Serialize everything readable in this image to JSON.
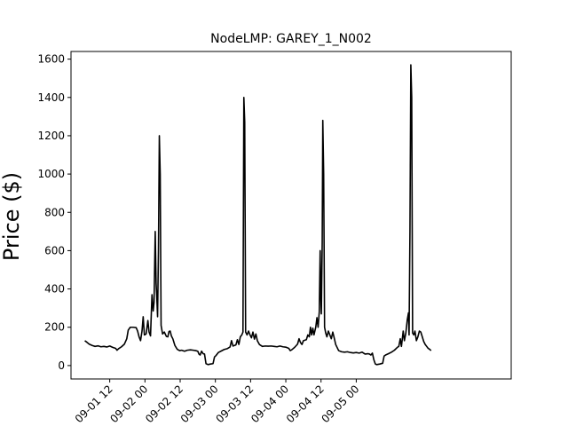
{
  "chart_data": {
    "type": "line",
    "title": "NodeLMP: GAREY_1_N002",
    "xlabel": "",
    "ylabel": "Price ($)",
    "x_unit": "hours since 09-01 00",
    "xlim": [
      -1.2,
      148.8
    ],
    "ylim": [
      -70,
      1640
    ],
    "yticks": [
      0,
      200,
      400,
      600,
      800,
      1000,
      1200,
      1400,
      1600
    ],
    "xticks": [
      {
        "x": 12,
        "label": "09-01 12"
      },
      {
        "x": 24,
        "label": "09-02 00"
      },
      {
        "x": 36,
        "label": "09-02 12"
      },
      {
        "x": 48,
        "label": "09-03 00"
      },
      {
        "x": 60,
        "label": "09-03 12"
      },
      {
        "x": 72,
        "label": "09-04 00"
      },
      {
        "x": 84,
        "label": "09-04 12"
      },
      {
        "x": 96,
        "label": "09-05 00"
      }
    ],
    "grid": false,
    "line_color": "#000000",
    "series": [
      {
        "name": "",
        "points": [
          [
            3.5,
            130
          ],
          [
            4.2,
            122
          ],
          [
            5,
            112
          ],
          [
            6,
            105
          ],
          [
            7,
            100
          ],
          [
            8,
            103
          ],
          [
            9,
            98
          ],
          [
            10,
            100
          ],
          [
            11,
            97
          ],
          [
            12,
            102
          ],
          [
            13,
            95
          ],
          [
            14,
            90
          ],
          [
            14.5,
            80
          ],
          [
            15,
            88
          ],
          [
            16,
            98
          ],
          [
            17,
            112
          ],
          [
            17.8,
            140
          ],
          [
            18.3,
            185
          ],
          [
            19,
            200
          ],
          [
            20,
            200
          ],
          [
            21,
            198
          ],
          [
            21.5,
            180
          ],
          [
            22,
            150
          ],
          [
            22.5,
            130
          ],
          [
            23,
            180
          ],
          [
            23.4,
            255
          ],
          [
            23.8,
            160
          ],
          [
            24.4,
            165
          ],
          [
            25,
            235
          ],
          [
            25.4,
            175
          ],
          [
            25.9,
            155
          ],
          [
            26.4,
            370
          ],
          [
            26.8,
            285
          ],
          [
            27.1,
            330
          ],
          [
            27.5,
            700
          ],
          [
            27.8,
            430
          ],
          [
            28,
            370
          ],
          [
            28.3,
            255
          ],
          [
            28.6,
            600
          ],
          [
            28.9,
            1200
          ],
          [
            29.2,
            1000
          ],
          [
            29.5,
            210
          ],
          [
            30,
            165
          ],
          [
            30.6,
            175
          ],
          [
            31.3,
            152
          ],
          [
            31.8,
            150
          ],
          [
            32.2,
            178
          ],
          [
            32.6,
            180
          ],
          [
            33,
            155
          ],
          [
            33.5,
            140
          ],
          [
            34.2,
            105
          ],
          [
            35,
            85
          ],
          [
            35.8,
            78
          ],
          [
            36.5,
            80
          ],
          [
            37.5,
            75
          ],
          [
            38.4,
            80
          ],
          [
            39.5,
            82
          ],
          [
            40.5,
            80
          ],
          [
            41.3,
            78
          ],
          [
            42,
            75
          ],
          [
            42.4,
            60
          ],
          [
            42.8,
            55
          ],
          [
            43.3,
            75
          ],
          [
            43.8,
            62
          ],
          [
            44.3,
            60
          ],
          [
            44.8,
            10
          ],
          [
            45.5,
            5
          ],
          [
            46.3,
            8
          ],
          [
            47.2,
            10
          ],
          [
            47.7,
            45
          ],
          [
            48.2,
            52
          ],
          [
            49,
            68
          ],
          [
            50,
            76
          ],
          [
            51,
            84
          ],
          [
            52,
            88
          ],
          [
            53,
            97
          ],
          [
            53.5,
            130
          ],
          [
            54,
            102
          ],
          [
            55,
            108
          ],
          [
            55.5,
            135
          ],
          [
            56,
            110
          ],
          [
            56.5,
            150
          ],
          [
            57,
            160
          ],
          [
            57.4,
            175
          ],
          [
            57.7,
            1400
          ],
          [
            58,
            1270
          ],
          [
            58.3,
            175
          ],
          [
            58.8,
            160
          ],
          [
            59.3,
            180
          ],
          [
            59.8,
            160
          ],
          [
            60.3,
            145
          ],
          [
            60.8,
            175
          ],
          [
            61.3,
            138
          ],
          [
            61.8,
            165
          ],
          [
            62.3,
            130
          ],
          [
            63,
            110
          ],
          [
            64,
            100
          ],
          [
            65,
            102
          ],
          [
            66,
            101
          ],
          [
            67,
            102
          ],
          [
            68,
            100
          ],
          [
            69,
            98
          ],
          [
            70,
            102
          ],
          [
            71,
            98
          ],
          [
            72,
            96
          ],
          [
            73,
            90
          ],
          [
            73.5,
            78
          ],
          [
            74,
            82
          ],
          [
            75,
            95
          ],
          [
            76,
            112
          ],
          [
            76.5,
            140
          ],
          [
            77,
            120
          ],
          [
            77.5,
            110
          ],
          [
            78,
            130
          ],
          [
            79,
            135
          ],
          [
            79.5,
            160
          ],
          [
            80,
            150
          ],
          [
            80.4,
            200
          ],
          [
            80.8,
            160
          ],
          [
            81.2,
            195
          ],
          [
            81.6,
            160
          ],
          [
            82.2,
            200
          ],
          [
            82.6,
            250
          ],
          [
            83,
            200
          ],
          [
            83.4,
            280
          ],
          [
            83.7,
            600
          ],
          [
            83.9,
            370
          ],
          [
            84.1,
            270
          ],
          [
            84.4,
            640
          ],
          [
            84.6,
            1280
          ],
          [
            84.9,
            1000
          ],
          [
            85.2,
            200
          ],
          [
            85.6,
            170
          ],
          [
            86,
            150
          ],
          [
            86.5,
            180
          ],
          [
            87,
            160
          ],
          [
            87.5,
            140
          ],
          [
            88,
            175
          ],
          [
            88.4,
            150
          ],
          [
            89,
            110
          ],
          [
            90,
            78
          ],
          [
            91,
            72
          ],
          [
            92,
            70
          ],
          [
            93,
            72
          ],
          [
            94,
            68
          ],
          [
            95,
            66
          ],
          [
            96,
            68
          ],
          [
            97,
            65
          ],
          [
            98,
            70
          ],
          [
            99,
            60
          ],
          [
            100,
            62
          ],
          [
            100.5,
            60
          ],
          [
            101,
            55
          ],
          [
            101.5,
            65
          ],
          [
            102,
            30
          ],
          [
            102.5,
            8
          ],
          [
            103,
            5
          ],
          [
            104,
            8
          ],
          [
            105,
            12
          ],
          [
            105.5,
            50
          ],
          [
            106,
            55
          ],
          [
            107,
            62
          ],
          [
            108,
            70
          ],
          [
            109,
            80
          ],
          [
            110,
            95
          ],
          [
            110.5,
            100
          ],
          [
            111,
            140
          ],
          [
            111.4,
            100
          ],
          [
            112,
            180
          ],
          [
            112.4,
            130
          ],
          [
            112.9,
            170
          ],
          [
            113.4,
            240
          ],
          [
            113.8,
            275
          ],
          [
            114,
            160
          ],
          [
            114.3,
            700
          ],
          [
            114.6,
            1570
          ],
          [
            114.9,
            1400
          ],
          [
            115.2,
            170
          ],
          [
            115.6,
            160
          ],
          [
            116,
            180
          ],
          [
            116.5,
            130
          ],
          [
            117,
            150
          ],
          [
            117.5,
            180
          ],
          [
            118,
            175
          ],
          [
            118.5,
            150
          ],
          [
            119,
            125
          ],
          [
            119.5,
            110
          ],
          [
            120,
            100
          ],
          [
            120.5,
            90
          ],
          [
            121,
            85
          ],
          [
            121.5,
            78
          ]
        ]
      }
    ]
  }
}
